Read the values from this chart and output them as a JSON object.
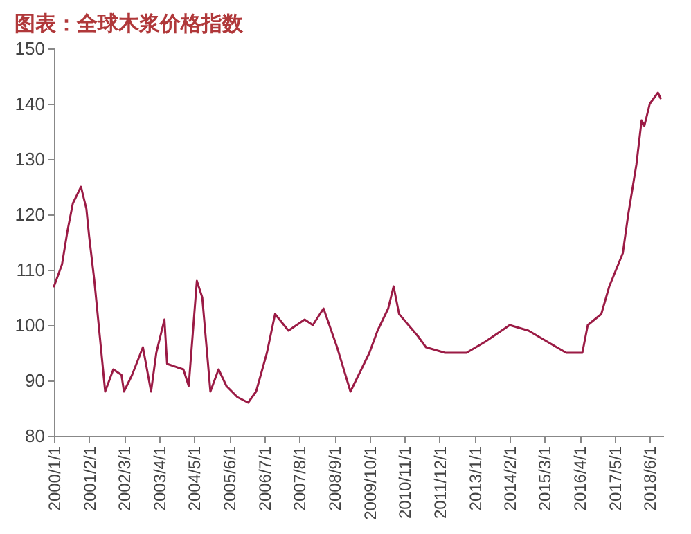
{
  "chart_data": {
    "type": "line",
    "title": "图表：全球木浆价格指数",
    "x": [
      "2000-01",
      "2000-04",
      "2000-06",
      "2000-08",
      "2000-11",
      "2001-01",
      "2001-02",
      "2001-04",
      "2001-06",
      "2001-08",
      "2001-11",
      "2002-02",
      "2002-03",
      "2002-06",
      "2002-10",
      "2003-01",
      "2003-03",
      "2003-06",
      "2003-07",
      "2004-01",
      "2004-03",
      "2004-06",
      "2004-08",
      "2004-11",
      "2005-02",
      "2005-05",
      "2005-09",
      "2006-01",
      "2006-04",
      "2006-08",
      "2006-11",
      "2007-04",
      "2007-10",
      "2008-01",
      "2008-05",
      "2008-10",
      "2009-03",
      "2009-06",
      "2009-10",
      "2010-01",
      "2010-05",
      "2010-07",
      "2010-09",
      "2011-04",
      "2011-07",
      "2012-02",
      "2012-10",
      "2013-05",
      "2014-02",
      "2014-09",
      "2015-04",
      "2015-11",
      "2016-05",
      "2016-07",
      "2016-12",
      "2017-03",
      "2017-08",
      "2017-10",
      "2018-01",
      "2018-03",
      "2018-04",
      "2018-06",
      "2018-09",
      "2018-10"
    ],
    "series": [
      {
        "color": "#9b1b45",
        "values": [
          107,
          111,
          117,
          122,
          125,
          121,
          116,
          108,
          98,
          88,
          92,
          91,
          88,
          91,
          96,
          88,
          95,
          101,
          93,
          92,
          89,
          108,
          105,
          88,
          92,
          89,
          87,
          86,
          88,
          95,
          102,
          99,
          101,
          100,
          103,
          96,
          88,
          91,
          95,
          99,
          103,
          107,
          102,
          98,
          96,
          95,
          95,
          97,
          100,
          99,
          97,
          95,
          95,
          100,
          102,
          107,
          113,
          120,
          129,
          137,
          136,
          140,
          142,
          141
        ]
      }
    ],
    "xlim": [
      "2000-01-01",
      "2018-11-01"
    ],
    "xticks": [
      {
        "value": "2000-01-01",
        "label": "2000/1/1"
      },
      {
        "value": "2001-02-01",
        "label": "2001/2/1"
      },
      {
        "value": "2002-03-01",
        "label": "2002/3/1"
      },
      {
        "value": "2003-04-01",
        "label": "2003/4/1"
      },
      {
        "value": "2004-05-01",
        "label": "2004/5/1"
      },
      {
        "value": "2005-06-01",
        "label": "2005/6/1"
      },
      {
        "value": "2006-07-01",
        "label": "2006/7/1"
      },
      {
        "value": "2007-08-01",
        "label": "2007/8/1"
      },
      {
        "value": "2008-09-01",
        "label": "2008/9/1"
      },
      {
        "value": "2009-10-01",
        "label": "2009/10/1"
      },
      {
        "value": "2010-11-01",
        "label": "2010/11/1"
      },
      {
        "value": "2011-12-01",
        "label": "2011/12/1"
      },
      {
        "value": "2013-01-01",
        "label": "2013/1/1"
      },
      {
        "value": "2014-02-01",
        "label": "2014/2/1"
      },
      {
        "value": "2015-03-01",
        "label": "2015/3/1"
      },
      {
        "value": "2016-04-01",
        "label": "2016/4/1"
      },
      {
        "value": "2017-05-01",
        "label": "2017/5/1"
      },
      {
        "value": "2018-06-01",
        "label": "2018/6/1"
      }
    ],
    "ylim": [
      80,
      150
    ],
    "yticks": [
      80,
      90,
      100,
      110,
      120,
      130,
      140,
      150
    ],
    "grid": false
  }
}
